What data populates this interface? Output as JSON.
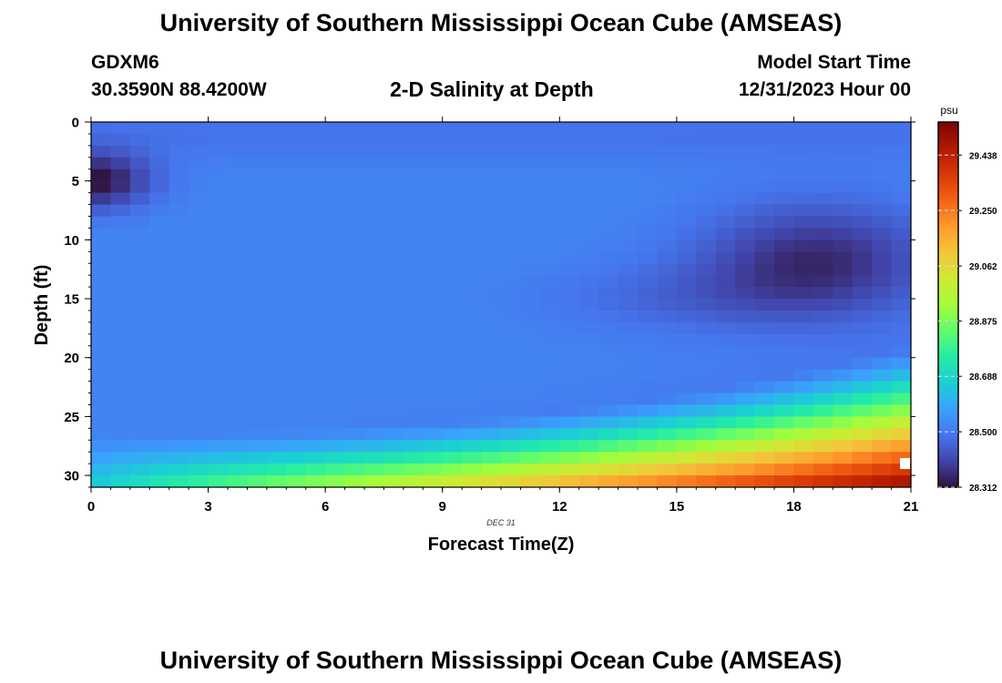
{
  "header": {
    "title": "University of Southern Mississippi Ocean Cube (AMSEAS)",
    "station": "GDXM6",
    "location": "30.3590N  88.4200W",
    "plot_title": "2-D Salinity at Depth",
    "model_start_label": "Model Start Time",
    "model_start_value": "12/31/2023 Hour 00"
  },
  "footer": {
    "title": "University of Southern Mississippi Ocean Cube (AMSEAS)"
  },
  "chart_data": {
    "type": "heatmap",
    "title": "2-D Salinity at Depth",
    "xlabel": "Forecast Time(Z)",
    "ylabel": "Depth (ft)",
    "date_label": "DEC  31",
    "x_ticks": [
      0,
      3,
      6,
      9,
      12,
      15,
      18,
      21
    ],
    "y_ticks": [
      0,
      5,
      10,
      15,
      20,
      25,
      30
    ],
    "xlim": [
      0,
      21
    ],
    "ylim": [
      0,
      31
    ],
    "y_reversed": true,
    "colorbar": {
      "unit": "psu",
      "ticks": [
        "29.438",
        "29.250",
        "29.062",
        "28.875",
        "28.688",
        "28.500",
        "28.312"
      ],
      "range": [
        28.312,
        29.55
      ],
      "colormap": [
        "#30123b",
        "#4145ab",
        "#4675ed",
        "#39a2fc",
        "#1bcfd4",
        "#24eca6",
        "#61fc6c",
        "#a4fc3b",
        "#d1e834",
        "#f3c63a",
        "#fe9b2d",
        "#f36315",
        "#d93806",
        "#b11901",
        "#7a0402"
      ]
    },
    "x_step_hours": 0.5,
    "y_step_ft": 1.0,
    "salinity_psu": "Gridded field of 43 columns (0 to 21 h, every 0.5 h) by 31 rows (depth 0 to 31 ft, every 1 ft) generated by the script from the column profiles below; values range from about 28.32 psu (upper left, 4-7 ft at 0 h) to about 29.53 psu (bottom right, 30 ft at 21 h).",
    "column_profiles": [
      {
        "hour": 0,
        "top": 28.48,
        "near_surface_min": 28.32,
        "mid": 28.52,
        "bottom": 28.66
      },
      {
        "hour": 3,
        "top": 28.48,
        "near_surface_min": 28.44,
        "mid": 28.52,
        "bottom": 28.84
      },
      {
        "hour": 6,
        "top": 28.49,
        "near_surface_min": 28.49,
        "mid": 28.52,
        "bottom": 29.02
      },
      {
        "hour": 9,
        "top": 28.49,
        "near_surface_min": 28.49,
        "mid": 28.51,
        "bottom": 29.12
      },
      {
        "hour": 12,
        "top": 28.48,
        "near_surface_min": 28.47,
        "mid": 28.49,
        "bottom": 29.3
      },
      {
        "hour": 15,
        "top": 28.46,
        "near_surface_min": 28.4,
        "mid": 28.4,
        "bottom": 29.42
      },
      {
        "hour": 18,
        "top": 28.45,
        "near_surface_min": 28.38,
        "mid": 28.37,
        "bottom": 29.5
      },
      {
        "hour": 21,
        "top": 28.45,
        "near_surface_min": 28.4,
        "mid": 28.44,
        "bottom": 29.53
      }
    ]
  }
}
